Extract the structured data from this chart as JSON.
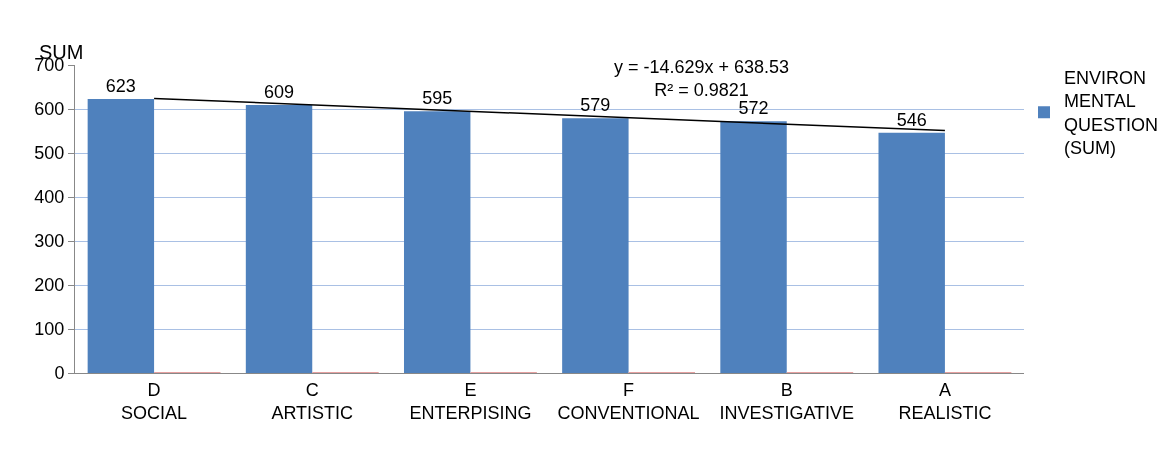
{
  "chart_data": {
    "type": "bar",
    "ylabel": "SUM",
    "categories": [
      "D\nSOCIAL",
      "C\nARTISTIC",
      "E\nENTERPISING",
      "F\nCONVENTIONAL",
      "B\nINVESTIGATIVE",
      "A\nREALISTIC"
    ],
    "series": [
      {
        "name": "ENVIRON\nMENTAL\nQUESTION\n(SUM)",
        "color": "#4f81bd",
        "values": [
          623,
          609,
          595,
          579,
          572,
          546
        ],
        "data_labels": true
      },
      {
        "color": "#e6a0a0",
        "values": [
          2,
          2,
          2,
          2,
          2,
          2
        ]
      },
      {
        "type": "line",
        "color": "#000000",
        "x": [
          "D\nSOCIAL",
          "A\nREALISTIC"
        ],
        "values": [
          624,
          551
        ]
      }
    ],
    "annotations": [
      "y = -14.629x + 638.53\nR² = 0.9821"
    ],
    "ylim": [
      0,
      700
    ],
    "yticks": [
      0,
      100,
      200,
      300,
      400,
      500,
      600,
      700
    ],
    "grid": "y",
    "legend": "right"
  }
}
